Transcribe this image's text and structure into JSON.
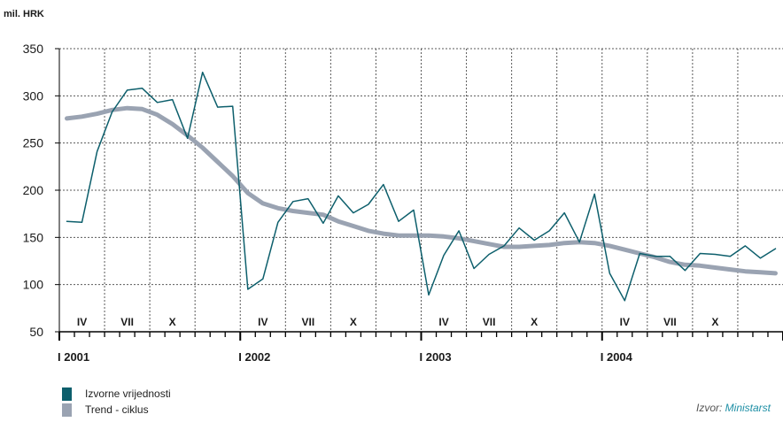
{
  "colors": {
    "series1": "#0d5f6c",
    "series2": "#9aa3b2",
    "axis": "#000000",
    "grid": "#5a5a5a"
  },
  "source": {
    "prefix": "Izvor: ",
    "name": "Ministarst"
  },
  "chart_data": {
    "type": "line",
    "unit_label": "mil. HRK",
    "ylim": [
      50,
      350
    ],
    "yticks": [
      50,
      100,
      150,
      200,
      250,
      300,
      350
    ],
    "grid": true,
    "legend_position": "bottom-left",
    "year_labels": [
      "I 2001",
      "I 2002",
      "I 2003",
      "I 2004"
    ],
    "quarter_labels": [
      "IV",
      "VII",
      "X",
      "IV",
      "VII",
      "X",
      "IV",
      "VII",
      "X",
      "IV",
      "VII",
      "X"
    ],
    "x": [
      "2001-01",
      "2001-02",
      "2001-03",
      "2001-04",
      "2001-05",
      "2001-06",
      "2001-07",
      "2001-08",
      "2001-09",
      "2001-10",
      "2001-11",
      "2001-12",
      "2002-01",
      "2002-02",
      "2002-03",
      "2002-04",
      "2002-05",
      "2002-06",
      "2002-07",
      "2002-08",
      "2002-09",
      "2002-10",
      "2002-11",
      "2002-12",
      "2003-01",
      "2003-02",
      "2003-03",
      "2003-04",
      "2003-05",
      "2003-06",
      "2003-07",
      "2003-08",
      "2003-09",
      "2003-10",
      "2003-11",
      "2003-12",
      "2004-01",
      "2004-02",
      "2004-03",
      "2004-04",
      "2004-05",
      "2004-06",
      "2004-07",
      "2004-08",
      "2004-09",
      "2004-10",
      "2004-11",
      "2004-12"
    ],
    "series": [
      {
        "name": "Izvorne vrijednosti",
        "values": [
          167,
          166,
          241,
          283,
          306,
          308,
          293,
          296,
          255,
          325,
          288,
          289,
          95,
          106,
          166,
          188,
          191,
          165,
          194,
          176,
          185,
          206,
          167,
          179,
          89,
          131,
          157,
          117,
          132,
          141,
          160,
          147,
          157,
          176,
          145,
          196,
          112,
          83,
          133,
          130,
          130,
          115,
          133,
          132,
          130,
          141,
          128,
          138
        ]
      },
      {
        "name": "Trend - ciklus",
        "values": [
          276,
          278,
          281,
          285,
          287,
          286,
          280,
          270,
          258,
          245,
          230,
          215,
          197,
          186,
          181,
          178,
          176,
          174,
          167,
          162,
          157,
          154,
          152,
          152,
          152,
          151,
          149,
          146,
          143,
          140,
          140,
          141,
          142,
          144,
          145,
          144,
          141,
          137,
          133,
          129,
          124,
          121,
          120,
          118,
          116,
          114,
          113,
          112
        ]
      }
    ]
  }
}
